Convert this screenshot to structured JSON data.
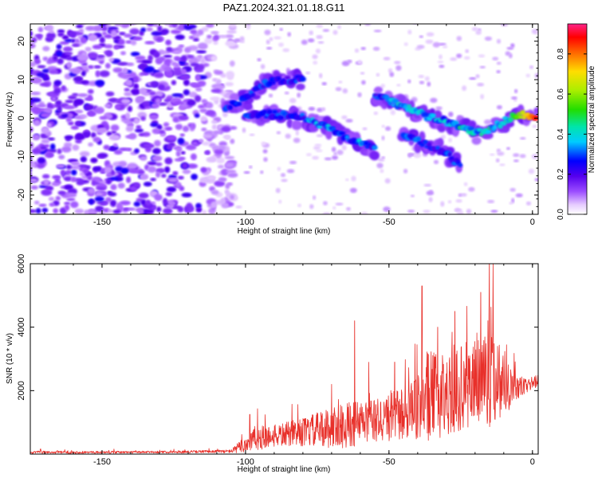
{
  "title": "PAZ1.2024.321.01.18.G11",
  "chart_data": [
    {
      "type": "heatmap",
      "xlabel": "Height of straight line (km)",
      "ylabel": "Frequency (Hz)",
      "xlim": [
        -175,
        2
      ],
      "ylim": [
        -25,
        24.5
      ],
      "xticks": [
        -150,
        -100,
        -50,
        0
      ],
      "yticks": [
        -20,
        -10,
        0,
        10,
        20
      ],
      "colorbar": {
        "label": "Normalized spectral amplitude",
        "range": [
          0,
          0.95
        ],
        "ticks": [
          0.0,
          0.2,
          0.4,
          0.6,
          0.8
        ]
      },
      "ridges": [
        {
          "x": [
            -107,
            -100,
            -93,
            -86,
            -80
          ],
          "y": [
            3,
            5,
            9,
            10,
            10
          ]
        },
        {
          "x": [
            -100,
            -90,
            -80,
            -70,
            -62,
            -55
          ],
          "y": [
            1,
            1,
            0,
            -3,
            -6,
            -8
          ]
        },
        {
          "x": [
            -55,
            -45,
            -35,
            -25,
            -20,
            -15,
            -8,
            -3,
            2
          ],
          "y": [
            6,
            3,
            0,
            -2,
            -4,
            -3,
            0,
            1,
            0
          ]
        },
        {
          "x": [
            -45,
            -40,
            -33,
            -25
          ],
          "y": [
            -4,
            -6,
            -8,
            -12
          ]
        }
      ]
    },
    {
      "type": "line",
      "xlabel": "Height of straight line (km)",
      "ylabel": "SNR (10 * v/v)",
      "xlim": [
        -175,
        2
      ],
      "ylim": [
        0,
        6000
      ],
      "xticks": [
        -150,
        -100,
        -50,
        0
      ],
      "yticks": [
        2000,
        4000,
        6000
      ],
      "series": [
        {
          "color": "#e8302a",
          "envelope": {
            "x": [
              -175,
              -150,
              -125,
              -105,
              -100,
              -97,
              -90,
              -80,
              -70,
              -62,
              -55,
              -45,
              -40,
              -38,
              -30,
              -20,
              -15,
              -10,
              -5,
              -2,
              0,
              2
            ],
            "base": [
              50,
              50,
              60,
              80,
              250,
              400,
              500,
              600,
              700,
              800,
              900,
              1100,
              1200,
              1500,
              1600,
              2000,
              2200,
              2100,
              2000,
              2100,
              2200,
              2300
            ],
            "amp": [
              80,
              70,
              70,
              100,
              600,
              800,
              700,
              900,
              1300,
              1500,
              1400,
              1700,
              2000,
              3000,
              2500,
              3000,
              3500,
              2200,
              800,
              500,
              400,
              400
            ]
          },
          "spikes": [
            {
              "x": -98.5,
              "y": 1250
            },
            {
              "x": -70,
              "y": 2200
            },
            {
              "x": -62,
              "y": 4200
            },
            {
              "x": -48,
              "y": 2900
            },
            {
              "x": -38.5,
              "y": 5300
            },
            {
              "x": -33,
              "y": 4000
            },
            {
              "x": -27,
              "y": 4500
            },
            {
              "x": -15,
              "y": 6000
            },
            {
              "x": -18,
              "y": 5100
            }
          ]
        }
      ]
    }
  ]
}
